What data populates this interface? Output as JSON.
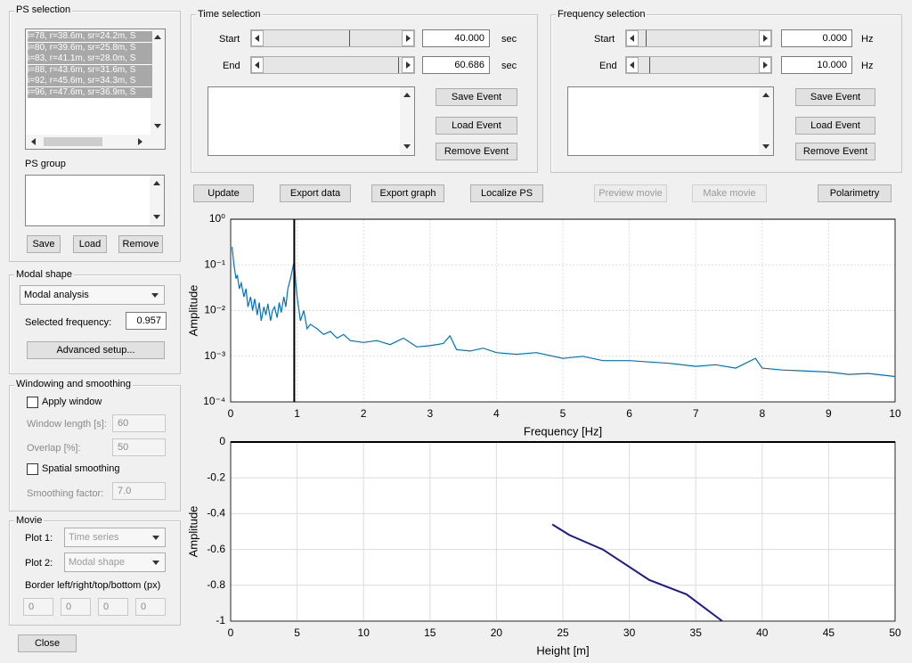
{
  "ps_selection": {
    "title": "PS selection",
    "list_items": [
      "i=78, r=38.6m, sr=24.2m, S",
      "i=80, r=39.6m, sr=25.8m, S",
      "i=83, r=41.1m, sr=28.0m, S",
      "i=88, r=43.6m, sr=31.6m, S",
      "i=92, r=45.6m, sr=34.3m, S",
      "i=96, r=47.6m, sr=36.9m, S"
    ],
    "group_label": "PS group",
    "buttons": [
      "Save",
      "Load",
      "Remove"
    ]
  },
  "time_selection": {
    "title": "Time selection",
    "start_label": "Start",
    "start_value": "40.000",
    "end_label": "End",
    "end_value": "60.686",
    "unit": "sec",
    "buttons": [
      "Save Event",
      "Load Event",
      "Remove Event"
    ]
  },
  "frequency_selection": {
    "title": "Frequency selection",
    "start_label": "Start",
    "start_value": "0.000",
    "end_label": "End",
    "end_value": "10.000",
    "unit": "Hz",
    "buttons": [
      "Save Event",
      "Load Event",
      "Remove Event"
    ]
  },
  "actions": [
    "Update",
    "Export data",
    "Export graph",
    "Localize PS",
    "Preview movie",
    "Make movie",
    "Polarimetry"
  ],
  "modal_shape": {
    "title": "Modal shape",
    "method": "Modal analysis",
    "selected_frequency_label": "Selected frequency:",
    "selected_frequency": 0.957,
    "advanced_button": "Advanced setup..."
  },
  "windowing": {
    "title": "Windowing and smoothing",
    "apply_window": "Apply window",
    "window_length_label": "Window length [s]:",
    "window_length": "60",
    "overlap_label": "Overlap [%]:",
    "overlap": "50",
    "spatial_smoothing": "Spatial smoothing",
    "smoothing_factor_label": "Smoothing factor:",
    "smoothing_factor": "7.0"
  },
  "movie": {
    "title": "Movie",
    "plot1_label": "Plot 1:",
    "plot1": "Time series",
    "plot2_label": "Plot 2:",
    "plot2": "Modal shape",
    "border_label": "Border left/right/top/bottom (px)",
    "borders": [
      "0",
      "0",
      "0",
      "0"
    ]
  },
  "close_button": "Close",
  "chart_data": [
    {
      "type": "line",
      "xlabel": "Frequency [Hz]",
      "ylabel": "Amplitude",
      "log_y": true,
      "grid": true,
      "color": "#0072bd",
      "x": [
        0.02,
        0.05,
        0.08,
        0.1,
        0.13,
        0.16,
        0.2,
        0.23,
        0.26,
        0.3,
        0.33,
        0.36,
        0.4,
        0.43,
        0.46,
        0.5,
        0.53,
        0.56,
        0.6,
        0.63,
        0.66,
        0.7,
        0.73,
        0.76,
        0.8,
        0.83,
        0.86,
        0.9,
        0.93,
        0.957,
        0.98,
        1.0,
        1.05,
        1.1,
        1.15,
        1.2,
        1.3,
        1.4,
        1.5,
        1.6,
        1.7,
        1.8,
        2.0,
        2.2,
        2.4,
        2.6,
        2.8,
        3.0,
        3.2,
        3.3,
        3.4,
        3.6,
        3.8,
        4.0,
        4.3,
        4.6,
        5.0,
        5.3,
        5.6,
        6.0,
        6.3,
        6.6,
        7.0,
        7.3,
        7.6,
        7.9,
        8.0,
        8.3,
        8.6,
        9.0,
        9.3,
        9.6,
        10.0
      ],
      "values": [
        0.25,
        0.1,
        0.05,
        0.06,
        0.03,
        0.04,
        0.02,
        0.03,
        0.012,
        0.02,
        0.01,
        0.018,
        0.008,
        0.015,
        0.006,
        0.012,
        0.008,
        0.014,
        0.006,
        0.01,
        0.012,
        0.007,
        0.015,
        0.009,
        0.02,
        0.012,
        0.03,
        0.05,
        0.08,
        0.12,
        0.04,
        0.02,
        0.006,
        0.01,
        0.004,
        0.005,
        0.004,
        0.003,
        0.0035,
        0.0025,
        0.003,
        0.0022,
        0.002,
        0.0022,
        0.0018,
        0.0025,
        0.0016,
        0.0017,
        0.0019,
        0.0028,
        0.0014,
        0.0013,
        0.0015,
        0.0012,
        0.0011,
        0.0012,
        0.0009,
        0.001,
        0.0008,
        0.0008,
        0.00075,
        0.0007,
        0.0006,
        0.00065,
        0.00055,
        0.0009,
        0.00055,
        0.0005,
        0.00048,
        0.00045,
        0.0004,
        0.00042,
        0.00036
      ],
      "xlim": [
        0,
        10
      ],
      "xticks": [
        0,
        1,
        2,
        3,
        4,
        5,
        6,
        7,
        8,
        9,
        10
      ],
      "ylim": [
        0.0001,
        1
      ],
      "yticks": [
        {
          "value": 0.0001,
          "label": "10⁻⁴"
        },
        {
          "value": 0.001,
          "label": "10⁻³"
        },
        {
          "value": 0.01,
          "label": "10⁻²"
        },
        {
          "value": 0.1,
          "label": "10⁻¹"
        },
        {
          "value": 1,
          "label": "10⁰"
        }
      ]
    },
    {
      "type": "line",
      "xlabel": "Height [m]",
      "ylabel": "Amplitude",
      "grid": true,
      "color": "#1a1a8c",
      "x": [
        24.2,
        25.5,
        28,
        31.5,
        34.3,
        37
      ],
      "values": [
        -0.46,
        -0.52,
        -0.6,
        -0.77,
        -0.85,
        -1
      ],
      "xlim": [
        0,
        50
      ],
      "xticks": [
        0,
        5,
        10,
        15,
        20,
        25,
        30,
        35,
        40,
        45,
        50
      ],
      "ylim": [
        -1,
        0
      ],
      "yticks": [
        -1,
        -0.8,
        -0.6,
        -0.4,
        -0.2,
        0
      ]
    }
  ]
}
